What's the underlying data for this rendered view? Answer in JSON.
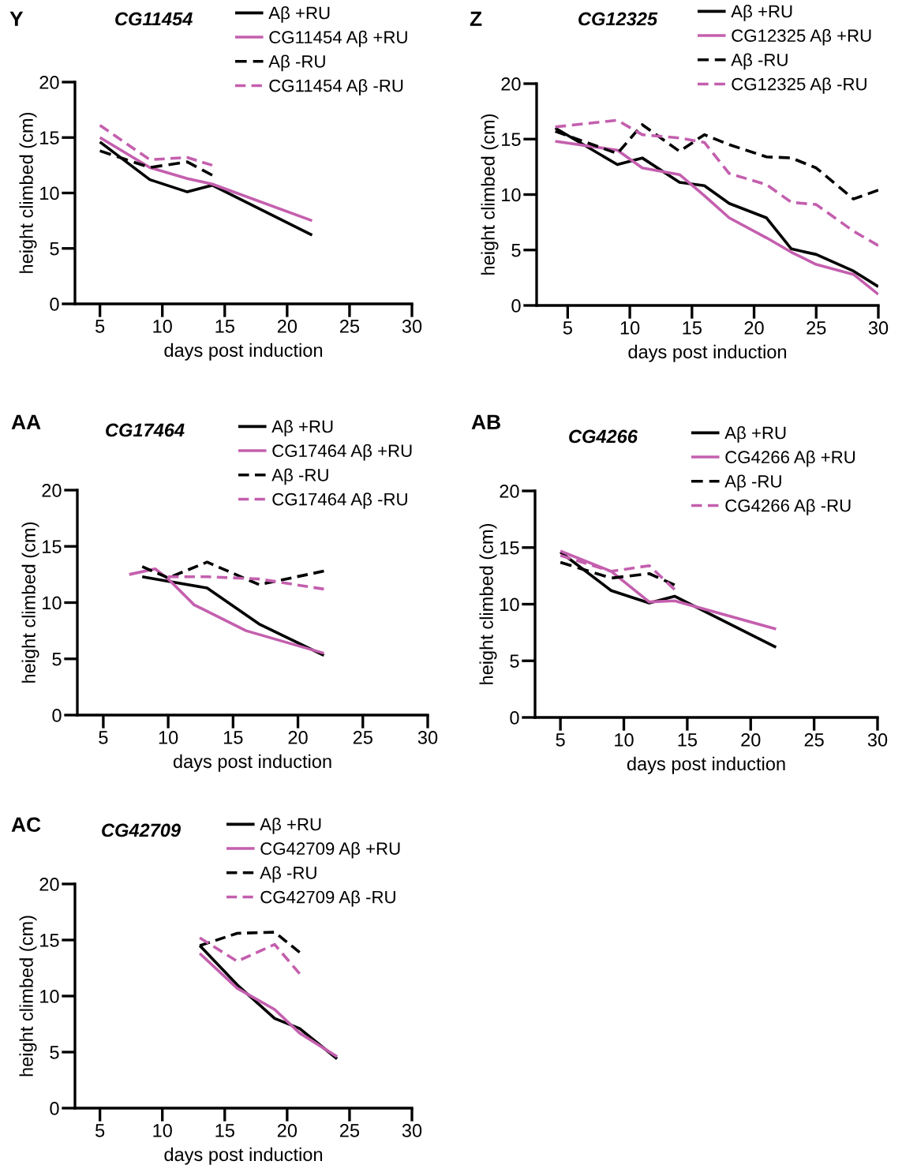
{
  "chart_data": [
    {
      "type": "line",
      "title": "CG11454",
      "annotations": [
        "Y"
      ],
      "xlabel": "days post induction",
      "ylabel": "height climbed (cm)",
      "xlim": [
        3,
        30
      ],
      "xticks": [
        5,
        10,
        15,
        20,
        25,
        30
      ],
      "ylim": [
        0,
        20
      ],
      "yticks": [
        0,
        5,
        10,
        15,
        20
      ],
      "legend": "top right",
      "series": [
        {
          "name": "Aβ +RU",
          "color": "#000000",
          "line_style": "solid",
          "x": [
            5,
            9,
            12,
            14,
            22
          ],
          "values": [
            14.6,
            11.2,
            10.1,
            10.7,
            6.2
          ]
        },
        {
          "name": "CG11454 Aβ +RU",
          "color": "#c45fae",
          "line_style": "solid",
          "x": [
            5,
            9,
            12,
            14,
            22
          ],
          "values": [
            15.0,
            12.3,
            11.3,
            10.8,
            7.5
          ]
        },
        {
          "name": "Aβ -RU",
          "color": "#000000",
          "line_style": "dashed",
          "x": [
            5,
            9,
            12,
            14
          ],
          "values": [
            13.8,
            12.3,
            12.8,
            11.6
          ]
        },
        {
          "name": "CG11454 Aβ -RU",
          "color": "#c45fae",
          "line_style": "dashed",
          "x": [
            5,
            9,
            12,
            14
          ],
          "values": [
            16.1,
            13.0,
            13.2,
            12.5
          ]
        }
      ]
    },
    {
      "type": "line",
      "title": "CG12325",
      "annotations": [
        "Z"
      ],
      "xlabel": "days post induction",
      "ylabel": "height climbed (cm)",
      "xlim": [
        2.5,
        30
      ],
      "xticks": [
        5,
        10,
        15,
        20,
        25,
        30
      ],
      "ylim": [
        0,
        20
      ],
      "yticks": [
        0,
        5,
        10,
        15,
        20
      ],
      "legend": "top right",
      "series": [
        {
          "name": "Aβ +RU",
          "color": "#000000",
          "line_style": "solid",
          "x": [
            4,
            9,
            11,
            14,
            16,
            18,
            21,
            23,
            25,
            28,
            30
          ],
          "values": [
            16.0,
            12.7,
            13.3,
            11.1,
            10.8,
            9.2,
            7.9,
            5.1,
            4.6,
            3.1,
            1.7
          ]
        },
        {
          "name": "CG12325 Aβ +RU",
          "color": "#c45fae",
          "line_style": "solid",
          "x": [
            4,
            9,
            11,
            14,
            16,
            18,
            21,
            23,
            25,
            28,
            30
          ],
          "values": [
            14.8,
            14.0,
            12.4,
            11.8,
            9.9,
            7.9,
            6.1,
            4.8,
            3.7,
            2.8,
            1.0
          ]
        },
        {
          "name": "Aβ -RU",
          "color": "#000000",
          "line_style": "dashed",
          "x": [
            4,
            9,
            11,
            14,
            16,
            18,
            21,
            23,
            25,
            28,
            30
          ],
          "values": [
            15.7,
            13.7,
            16.3,
            13.9,
            15.4,
            14.5,
            13.4,
            13.3,
            12.4,
            9.6,
            10.4
          ]
        },
        {
          "name": "CG12325 Aβ -RU",
          "color": "#c45fae",
          "line_style": "dashed",
          "x": [
            4,
            9,
            11,
            14,
            16,
            18,
            21,
            23,
            25,
            28,
            30
          ],
          "values": [
            16.1,
            16.7,
            15.4,
            15.1,
            14.7,
            11.9,
            10.9,
            9.3,
            9.1,
            6.7,
            5.4
          ]
        }
      ]
    },
    {
      "type": "line",
      "title": "CG17464",
      "annotations": [
        "AA"
      ],
      "xlabel": "days post induction",
      "ylabel": "height climbed (cm)",
      "xlim": [
        3,
        30
      ],
      "xticks": [
        5,
        10,
        15,
        20,
        25,
        30
      ],
      "ylim": [
        0,
        20
      ],
      "yticks": [
        0,
        5,
        10,
        15,
        20
      ],
      "legend": "top right",
      "series": [
        {
          "name": "Aβ +RU",
          "color": "#000000",
          "line_style": "solid",
          "x": [
            8,
            10,
            13,
            17,
            22
          ],
          "values": [
            12.3,
            11.9,
            11.3,
            8.1,
            5.3
          ]
        },
        {
          "name": "CG17464 Aβ +RU",
          "color": "#c45fae",
          "line_style": "solid",
          "x": [
            7,
            9,
            10,
            12,
            16,
            22
          ],
          "values": [
            12.5,
            13.0,
            12.1,
            9.8,
            7.5,
            5.5
          ]
        },
        {
          "name": "Aβ -RU",
          "color": "#000000",
          "line_style": "dashed",
          "x": [
            8,
            10,
            13,
            17,
            22
          ],
          "values": [
            13.2,
            12.2,
            13.6,
            11.6,
            12.8
          ]
        },
        {
          "name": "CG17464 Aβ -RU",
          "color": "#c45fae",
          "line_style": "dashed",
          "x": [
            10,
            13,
            17,
            22
          ],
          "values": [
            12.3,
            12.3,
            12.1,
            11.2
          ]
        }
      ]
    },
    {
      "type": "line",
      "title": "CG4266",
      "annotations": [
        "AB"
      ],
      "xlabel": "days post induction",
      "ylabel": "height climbed (cm)",
      "xlim": [
        3,
        30
      ],
      "xticks": [
        5,
        10,
        15,
        20,
        25,
        30
      ],
      "ylim": [
        0,
        20
      ],
      "yticks": [
        0,
        5,
        10,
        15,
        20
      ],
      "legend": "top right",
      "series": [
        {
          "name": "Aβ +RU",
          "color": "#000000",
          "line_style": "solid",
          "x": [
            5,
            9,
            12,
            14,
            22
          ],
          "values": [
            14.6,
            11.2,
            10.1,
            10.7,
            6.2
          ]
        },
        {
          "name": "CG4266 Aβ +RU",
          "color": "#c45fae",
          "line_style": "solid",
          "x": [
            5,
            9,
            12,
            14,
            22
          ],
          "values": [
            14.7,
            12.9,
            10.2,
            10.3,
            7.8
          ]
        },
        {
          "name": "Aβ -RU",
          "color": "#000000",
          "line_style": "dashed",
          "x": [
            5,
            9,
            12,
            14
          ],
          "values": [
            13.7,
            12.3,
            12.7,
            11.7
          ]
        },
        {
          "name": "CG4266 Aβ -RU",
          "color": "#c45fae",
          "line_style": "dashed",
          "x": [
            5,
            9,
            12,
            14
          ],
          "values": [
            14.3,
            12.9,
            13.4,
            11.3
          ]
        }
      ]
    },
    {
      "type": "line",
      "title": "CG42709",
      "annotations": [
        "AC"
      ],
      "xlabel": "days post induction",
      "ylabel": "height climbed (cm)",
      "xlim": [
        3,
        30
      ],
      "xticks": [
        5,
        10,
        15,
        20,
        25,
        30
      ],
      "ylim": [
        0,
        20
      ],
      "yticks": [
        0,
        5,
        10,
        15,
        20
      ],
      "legend": "top right",
      "series": [
        {
          "name": "Aβ +RU",
          "color": "#000000",
          "line_style": "solid",
          "x": [
            13,
            16,
            19,
            21,
            24
          ],
          "values": [
            14.5,
            11.0,
            8.0,
            7.1,
            4.4
          ]
        },
        {
          "name": "CG42709 Aβ +RU",
          "color": "#c45fae",
          "line_style": "solid",
          "x": [
            13,
            16,
            19,
            21,
            24
          ],
          "values": [
            13.8,
            10.7,
            8.8,
            6.7,
            4.6
          ]
        },
        {
          "name": "Aβ -RU",
          "color": "#000000",
          "line_style": "dashed",
          "x": [
            13,
            16,
            19,
            21
          ],
          "values": [
            14.5,
            15.6,
            15.7,
            13.9
          ]
        },
        {
          "name": "CG42709 Aβ -RU",
          "color": "#c45fae",
          "line_style": "dashed",
          "x": [
            13,
            16,
            19,
            21
          ],
          "values": [
            15.2,
            13.1,
            14.6,
            12.0
          ]
        }
      ]
    }
  ]
}
